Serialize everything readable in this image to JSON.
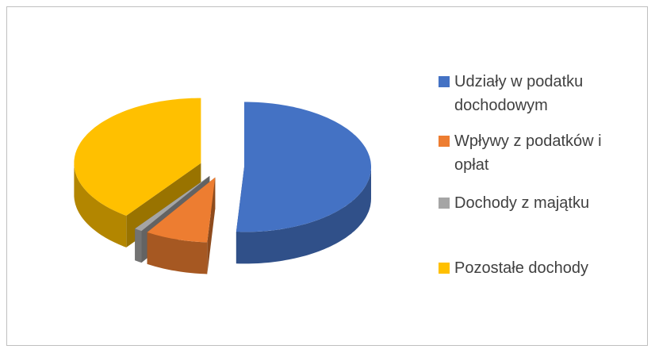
{
  "chart_data": {
    "type": "pie3d",
    "categories": [
      "Udziały w podatku dochodowym",
      "Wpływy z podatków i opłat",
      "Dochody z majątku",
      "Pozostałe dochody"
    ],
    "values": [
      51,
      8,
      1,
      40
    ],
    "colors": [
      "#4472c4",
      "#ed7d31",
      "#a5a5a5",
      "#ffc000"
    ],
    "legend": "right"
  }
}
